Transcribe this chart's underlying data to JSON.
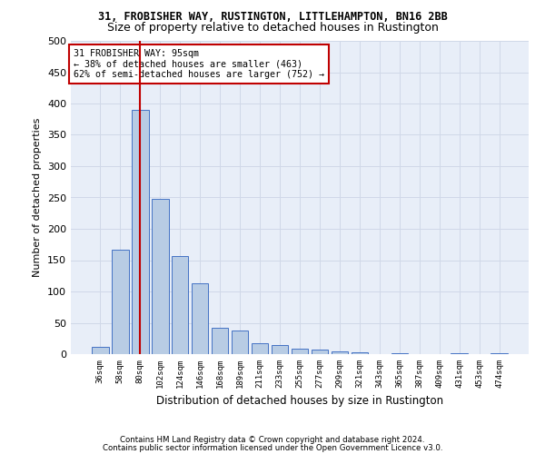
{
  "title1": "31, FROBISHER WAY, RUSTINGTON, LITTLEHAMPTON, BN16 2BB",
  "title2": "Size of property relative to detached houses in Rustington",
  "xlabel": "Distribution of detached houses by size in Rustington",
  "ylabel": "Number of detached properties",
  "footer1": "Contains HM Land Registry data © Crown copyright and database right 2024.",
  "footer2": "Contains public sector information licensed under the Open Government Licence v3.0.",
  "categories": [
    "36sqm",
    "58sqm",
    "80sqm",
    "102sqm",
    "124sqm",
    "146sqm",
    "168sqm",
    "189sqm",
    "211sqm",
    "233sqm",
    "255sqm",
    "277sqm",
    "299sqm",
    "321sqm",
    "343sqm",
    "365sqm",
    "387sqm",
    "409sqm",
    "431sqm",
    "453sqm",
    "474sqm"
  ],
  "values": [
    11,
    167,
    390,
    248,
    156,
    113,
    42,
    38,
    17,
    14,
    8,
    7,
    5,
    3,
    0,
    2,
    0,
    0,
    2,
    0,
    2
  ],
  "bar_color": "#b8cce4",
  "bar_edge_color": "#4472c4",
  "vline_index": 2,
  "vline_color": "#c00000",
  "annotation_text": "31 FROBISHER WAY: 95sqm\n← 38% of detached houses are smaller (463)\n62% of semi-detached houses are larger (752) →",
  "annotation_box_color": "#c00000",
  "ylim": [
    0,
    500
  ],
  "yticks": [
    0,
    50,
    100,
    150,
    200,
    250,
    300,
    350,
    400,
    450,
    500
  ],
  "grid_color": "#d0d8e8",
  "bg_color": "#e8eef8",
  "title1_fontsize": 8.5,
  "title2_fontsize": 9,
  "ylabel_fontsize": 8,
  "xlabel_fontsize": 8.5
}
